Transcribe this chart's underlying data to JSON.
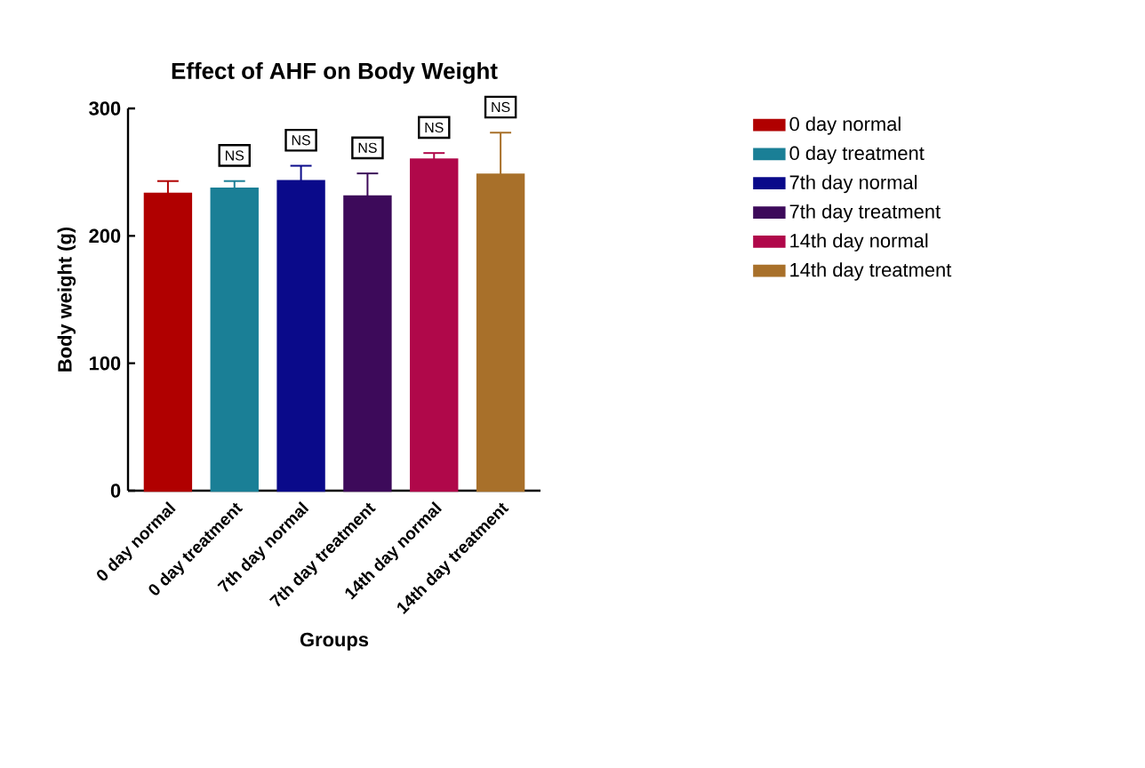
{
  "chart_data": {
    "type": "bar",
    "title": "Effect of AHF on Body Weight",
    "xlabel": "Groups",
    "ylabel": "Body weight (g)",
    "categories": [
      "0 day normal",
      "0 day treatment",
      "7th day normal",
      "7th day treatment",
      "14th day normal",
      "14th day treatment"
    ],
    "series": [
      {
        "name": "0 day normal",
        "color": "#b00000",
        "values": [
          233,
          null,
          null,
          null,
          null,
          null
        ],
        "errors": [
          10,
          null,
          null,
          null,
          null,
          null
        ]
      },
      {
        "name": "0 day treatment",
        "color": "#1a7f96",
        "values": [
          null,
          237,
          null,
          null,
          null,
          null
        ],
        "errors": [
          null,
          6,
          null,
          null,
          null,
          null
        ]
      },
      {
        "name": "7th day normal",
        "color": "#0a0a8a",
        "values": [
          null,
          null,
          243,
          null,
          null,
          null
        ],
        "errors": [
          null,
          null,
          12,
          null,
          null,
          null
        ]
      },
      {
        "name": "7th day treatment",
        "color": "#3d0a5a",
        "values": [
          null,
          null,
          null,
          231,
          null,
          null
        ],
        "errors": [
          null,
          null,
          null,
          18,
          null,
          null
        ]
      },
      {
        "name": "14th day normal",
        "color": "#b0084a",
        "values": [
          null,
          null,
          null,
          null,
          260,
          null
        ],
        "errors": [
          null,
          null,
          null,
          null,
          5,
          null
        ]
      },
      {
        "name": "14th day treatment",
        "color": "#a8702a",
        "values": [
          null,
          null,
          null,
          null,
          null,
          248
        ],
        "errors": [
          null,
          null,
          null,
          null,
          null,
          33
        ]
      }
    ],
    "ylim": [
      0,
      300
    ],
    "yticks": [
      0,
      100,
      200,
      300
    ],
    "grid": false,
    "legend": "right",
    "annotations": [
      {
        "text": "NS",
        "x": "0 day treatment",
        "y": 243
      },
      {
        "text": "NS",
        "x": "7th day normal",
        "y": 255
      },
      {
        "text": "NS",
        "x": "7th day treatment",
        "y": 249
      },
      {
        "text": "NS",
        "x": "14th day normal",
        "y": 265
      },
      {
        "text": "NS",
        "x": "14th day treatment",
        "y": 281
      }
    ]
  }
}
